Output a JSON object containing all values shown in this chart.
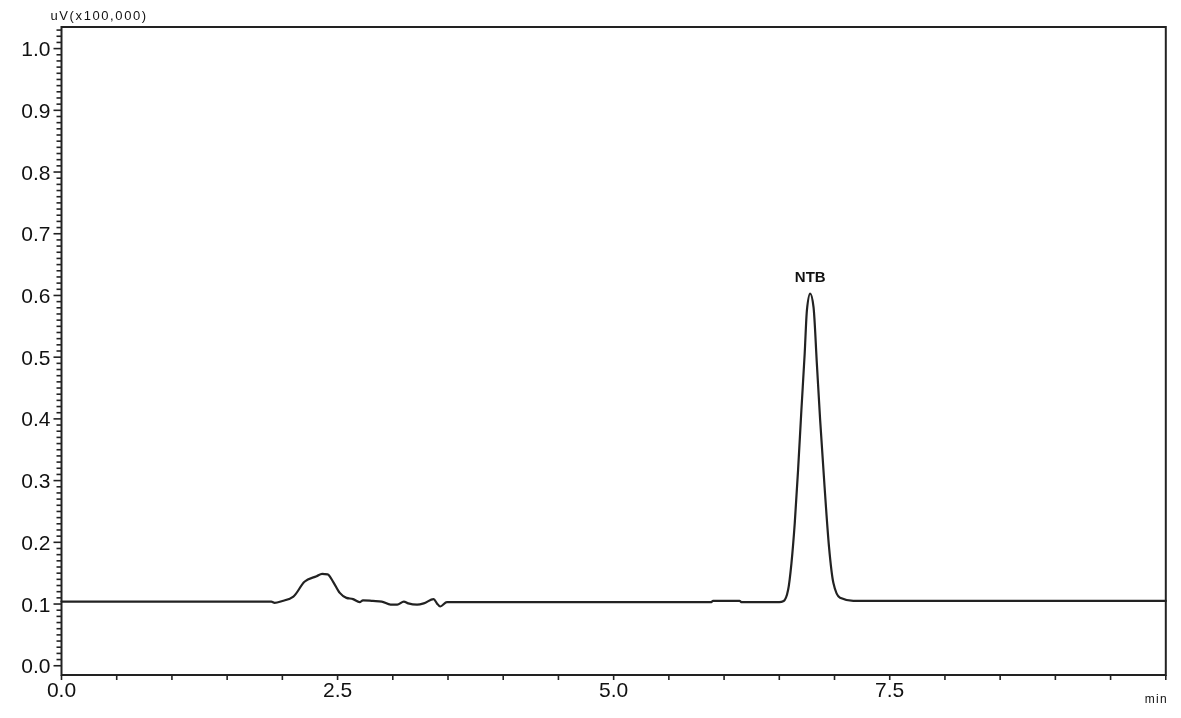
{
  "chart_data": {
    "type": "line",
    "xlabel": "min",
    "ylabel": "uV(x100,000)",
    "xlim": [
      0,
      10
    ],
    "ylim": [
      -0.015,
      1.035
    ],
    "xticks": [
      {
        "value": 0,
        "label": "0.0"
      },
      {
        "value": 0.5,
        "label": null
      },
      {
        "value": 1,
        "label": null
      },
      {
        "value": 1.5,
        "label": null
      },
      {
        "value": 2,
        "label": null
      },
      {
        "value": 2.5,
        "label": "2.5"
      },
      {
        "value": 3,
        "label": null
      },
      {
        "value": 3.5,
        "label": null
      },
      {
        "value": 4,
        "label": null
      },
      {
        "value": 4.5,
        "label": null
      },
      {
        "value": 5,
        "label": "5.0"
      },
      {
        "value": 5.5,
        "label": null
      },
      {
        "value": 6,
        "label": null
      },
      {
        "value": 6.5,
        "label": null
      },
      {
        "value": 7,
        "label": null
      },
      {
        "value": 7.5,
        "label": "7.5"
      },
      {
        "value": 8,
        "label": null
      },
      {
        "value": 8.5,
        "label": null
      },
      {
        "value": 9,
        "label": null
      },
      {
        "value": 9.5,
        "label": null
      },
      {
        "value": 10,
        "label": null
      }
    ],
    "yticks": [
      {
        "value": 0,
        "label": "0.0"
      },
      {
        "value": 0.01,
        "label": null
      },
      {
        "value": 0.02,
        "label": null
      },
      {
        "value": 0.03,
        "label": null
      },
      {
        "value": 0.04,
        "label": null
      },
      {
        "value": 0.05,
        "label": null
      },
      {
        "value": 0.06,
        "label": null
      },
      {
        "value": 0.07,
        "label": null
      },
      {
        "value": 0.08,
        "label": null
      },
      {
        "value": 0.09,
        "label": null
      },
      {
        "value": 0.1,
        "label": "0.1"
      },
      {
        "value": 0.11,
        "label": null
      },
      {
        "value": 0.12,
        "label": null
      },
      {
        "value": 0.13,
        "label": null
      },
      {
        "value": 0.14,
        "label": null
      },
      {
        "value": 0.15,
        "label": null
      },
      {
        "value": 0.16,
        "label": null
      },
      {
        "value": 0.17,
        "label": null
      },
      {
        "value": 0.18,
        "label": null
      },
      {
        "value": 0.19,
        "label": null
      },
      {
        "value": 0.2,
        "label": "0.2"
      },
      {
        "value": 0.21,
        "label": null
      },
      {
        "value": 0.22,
        "label": null
      },
      {
        "value": 0.23,
        "label": null
      },
      {
        "value": 0.24,
        "label": null
      },
      {
        "value": 0.25,
        "label": null
      },
      {
        "value": 0.26,
        "label": null
      },
      {
        "value": 0.27,
        "label": null
      },
      {
        "value": 0.28,
        "label": null
      },
      {
        "value": 0.29,
        "label": null
      },
      {
        "value": 0.3,
        "label": "0.3"
      },
      {
        "value": 0.31,
        "label": null
      },
      {
        "value": 0.32,
        "label": null
      },
      {
        "value": 0.33,
        "label": null
      },
      {
        "value": 0.34,
        "label": null
      },
      {
        "value": 0.35,
        "label": null
      },
      {
        "value": 0.36,
        "label": null
      },
      {
        "value": 0.37,
        "label": null
      },
      {
        "value": 0.38,
        "label": null
      },
      {
        "value": 0.39,
        "label": null
      },
      {
        "value": 0.4,
        "label": "0.4"
      },
      {
        "value": 0.41,
        "label": null
      },
      {
        "value": 0.42,
        "label": null
      },
      {
        "value": 0.43,
        "label": null
      },
      {
        "value": 0.44,
        "label": null
      },
      {
        "value": 0.45,
        "label": null
      },
      {
        "value": 0.46,
        "label": null
      },
      {
        "value": 0.47,
        "label": null
      },
      {
        "value": 0.48,
        "label": null
      },
      {
        "value": 0.49,
        "label": null
      },
      {
        "value": 0.5,
        "label": "0.5"
      },
      {
        "value": 0.51,
        "label": null
      },
      {
        "value": 0.52,
        "label": null
      },
      {
        "value": 0.53,
        "label": null
      },
      {
        "value": 0.54,
        "label": null
      },
      {
        "value": 0.55,
        "label": null
      },
      {
        "value": 0.56,
        "label": null
      },
      {
        "value": 0.57,
        "label": null
      },
      {
        "value": 0.58,
        "label": null
      },
      {
        "value": 0.59,
        "label": null
      },
      {
        "value": 0.6,
        "label": "0.6"
      },
      {
        "value": 0.61,
        "label": null
      },
      {
        "value": 0.62,
        "label": null
      },
      {
        "value": 0.63,
        "label": null
      },
      {
        "value": 0.64,
        "label": null
      },
      {
        "value": 0.65,
        "label": null
      },
      {
        "value": 0.66,
        "label": null
      },
      {
        "value": 0.67,
        "label": null
      },
      {
        "value": 0.68,
        "label": null
      },
      {
        "value": 0.69,
        "label": null
      },
      {
        "value": 0.7,
        "label": "0.7"
      },
      {
        "value": 0.71,
        "label": null
      },
      {
        "value": 0.72,
        "label": null
      },
      {
        "value": 0.73,
        "label": null
      },
      {
        "value": 0.74,
        "label": null
      },
      {
        "value": 0.75,
        "label": null
      },
      {
        "value": 0.76,
        "label": null
      },
      {
        "value": 0.77,
        "label": null
      },
      {
        "value": 0.78,
        "label": null
      },
      {
        "value": 0.79,
        "label": null
      },
      {
        "value": 0.8,
        "label": "0.8"
      },
      {
        "value": 0.81,
        "label": null
      },
      {
        "value": 0.82,
        "label": null
      },
      {
        "value": 0.83,
        "label": null
      },
      {
        "value": 0.84,
        "label": null
      },
      {
        "value": 0.85,
        "label": null
      },
      {
        "value": 0.86,
        "label": null
      },
      {
        "value": 0.87,
        "label": null
      },
      {
        "value": 0.88,
        "label": null
      },
      {
        "value": 0.89,
        "label": null
      },
      {
        "value": 0.9,
        "label": "0.9"
      },
      {
        "value": 0.91,
        "label": null
      },
      {
        "value": 0.92,
        "label": null
      },
      {
        "value": 0.93,
        "label": null
      },
      {
        "value": 0.94,
        "label": null
      },
      {
        "value": 0.95,
        "label": null
      },
      {
        "value": 0.96,
        "label": null
      },
      {
        "value": 0.97,
        "label": null
      },
      {
        "value": 0.98,
        "label": null
      },
      {
        "value": 0.99,
        "label": null
      },
      {
        "value": 1,
        "label": "1.0"
      },
      {
        "value": 1.01,
        "label": null
      },
      {
        "value": 1.02,
        "label": null
      },
      {
        "value": 1.03,
        "label": null
      }
    ],
    "annotations": [
      {
        "text": "NTB",
        "x": 6.78,
        "y": 0.603
      }
    ],
    "series": [
      {
        "color": "#222222",
        "x": [
          0,
          1.7,
          1.9,
          1.93,
          2.0,
          2.1,
          2.2,
          2.31,
          2.36,
          2.41,
          2.46,
          2.52,
          2.58,
          2.64,
          2.7,
          2.73,
          2.82,
          2.9,
          2.98,
          3.04,
          3.1,
          3.14,
          3.22,
          3.28,
          3.37,
          3.4,
          3.43,
          3.49,
          3.97,
          5.0,
          5.88,
          5.9,
          6.14,
          6.16,
          6.5,
          6.54,
          6.58,
          6.61,
          6.64,
          6.67,
          6.7,
          6.73,
          6.75,
          6.78,
          6.81,
          6.84,
          6.87,
          6.91,
          6.95,
          6.99,
          7.05,
          7.17,
          8.0,
          10.0
        ],
        "values": [
          0.104,
          0.104,
          0.104,
          0.102,
          0.105,
          0.112,
          0.136,
          0.145,
          0.149,
          0.148,
          0.136,
          0.118,
          0.11,
          0.108,
          0.103,
          0.106,
          0.105,
          0.104,
          0.099,
          0.099,
          0.104,
          0.101,
          0.099,
          0.101,
          0.108,
          0.101,
          0.096,
          0.103,
          0.103,
          0.103,
          0.103,
          0.105,
          0.105,
          0.103,
          0.103,
          0.105,
          0.123,
          0.166,
          0.231,
          0.317,
          0.414,
          0.506,
          0.576,
          0.603,
          0.581,
          0.49,
          0.398,
          0.29,
          0.193,
          0.134,
          0.11,
          0.105,
          0.105,
          0.105
        ]
      }
    ]
  }
}
